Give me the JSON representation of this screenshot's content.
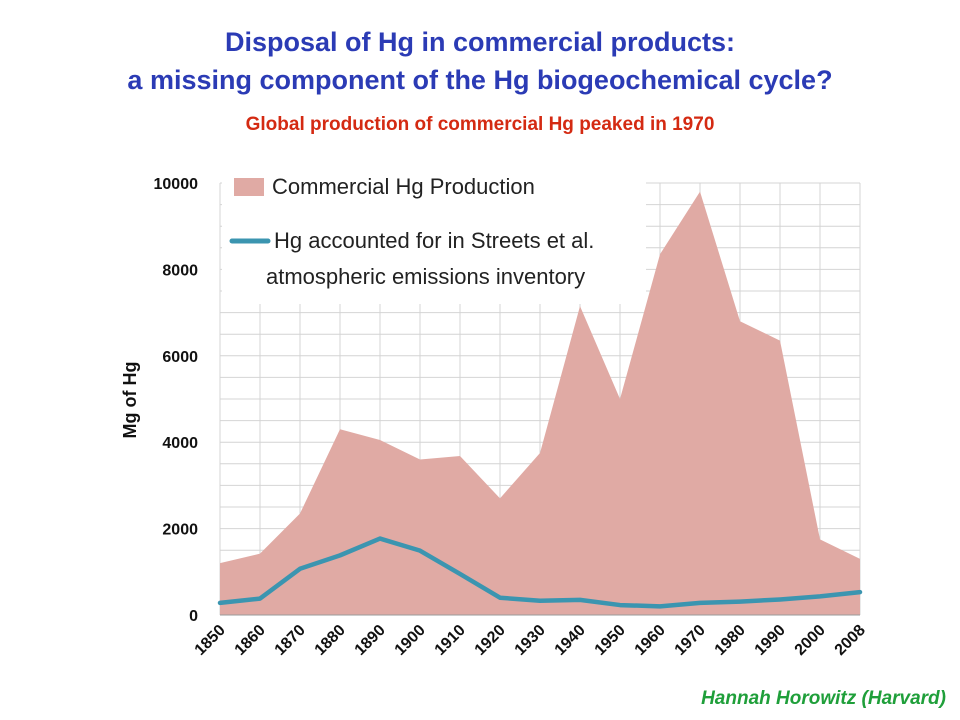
{
  "slide": {
    "title_line1": "Disposal of Hg in commercial products:",
    "title_line2": "a missing component of the Hg biogeochemical cycle?",
    "subtitle": "Global production of commercial Hg peaked in 1970",
    "credit": "Hannah Horowitz (Harvard)"
  },
  "chart_data": {
    "type": "area",
    "x": [
      1850,
      1860,
      1870,
      1880,
      1890,
      1900,
      1910,
      1920,
      1930,
      1940,
      1950,
      1960,
      1970,
      1980,
      1990,
      2000,
      2008
    ],
    "x_tick_labels": [
      "1850",
      "1860",
      "1870",
      "1880",
      "1890",
      "1900",
      "1910",
      "1920",
      "1930",
      "1940",
      "1950",
      "1960",
      "1970",
      "1980",
      "1990",
      "2000",
      "2008"
    ],
    "series": [
      {
        "name": "Commercial Hg Production",
        "type": "area",
        "color": "#e0aaa4",
        "values": [
          1200,
          1420,
          2350,
          4300,
          4050,
          3600,
          3680,
          2700,
          3750,
          7150,
          5000,
          8350,
          9800,
          6800,
          6350,
          1750,
          1300
        ]
      },
      {
        "name_line1": "Hg accounted for in Streets et al.",
        "name_line2": "atmospheric emissions inventory",
        "type": "line",
        "color": "#3b95b0",
        "values": [
          280,
          380,
          1070,
          1380,
          1770,
          1490,
          950,
          400,
          330,
          350,
          230,
          200,
          280,
          310,
          360,
          430,
          530
        ]
      }
    ],
    "ylabel": "Mg of Hg",
    "ylim": [
      0,
      10000
    ],
    "y_ticks": [
      0,
      2000,
      4000,
      6000,
      8000,
      10000
    ],
    "y_tick_labels": [
      "0",
      "2000",
      "4000",
      "6000",
      "8000",
      "10000"
    ],
    "grid": true,
    "legend_position": "top-left"
  }
}
